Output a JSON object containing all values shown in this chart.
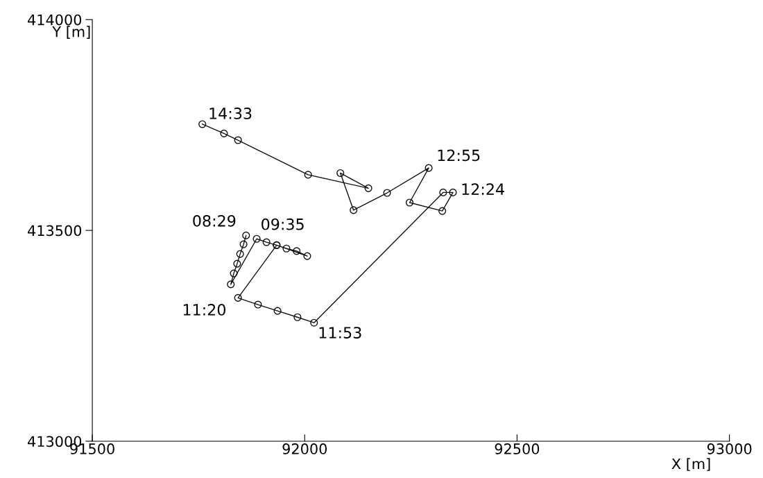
{
  "chart_data": {
    "type": "line",
    "xlabel": "X [m]",
    "ylabel": "Y [m]",
    "x": [
      91862,
      91856,
      91848,
      91841,
      91833,
      91826,
      91887,
      91910,
      91934,
      91957,
      91981,
      92006,
      91934,
      91843,
      91890,
      91936,
      91983,
      92022,
      92326,
      92349,
      92324,
      92247,
      92292,
      92194,
      92115,
      92084,
      92150,
      92008,
      91843,
      91810,
      91759
    ],
    "series": [
      {
        "color": "#111111",
        "values": [
          413488,
          413467,
          413444,
          413421,
          413398,
          413372,
          413480,
          413472,
          413465,
          413457,
          413451,
          413439,
          413465,
          413340,
          413324,
          413309,
          413294,
          413281,
          413590,
          413590,
          413546,
          413566,
          413648,
          413589,
          413548,
          413636,
          413600,
          413632,
          413714,
          413730,
          413752
        ]
      }
    ],
    "xlim": [
      91500,
      93000
    ],
    "ylim": [
      413000,
      414000
    ],
    "xticks": [
      91500,
      92000,
      92500,
      93000
    ],
    "yticks": [
      413000,
      413500,
      414000
    ],
    "grid": false,
    "legend": false,
    "marker": "circle",
    "line_style": "solid",
    "annotations": [
      {
        "text": "08:29",
        "x": 91862,
        "y": 413488
      },
      {
        "text": "09:35",
        "x": 91887,
        "y": 413480
      },
      {
        "text": "11:20",
        "x": 91843,
        "y": 413340
      },
      {
        "text": "11:53",
        "x": 92022,
        "y": 413281
      },
      {
        "text": "12:24",
        "x": 92349,
        "y": 413590
      },
      {
        "text": "12:55",
        "x": 92292,
        "y": 413648
      },
      {
        "text": "14:33",
        "x": 91759,
        "y": 413752
      }
    ]
  }
}
